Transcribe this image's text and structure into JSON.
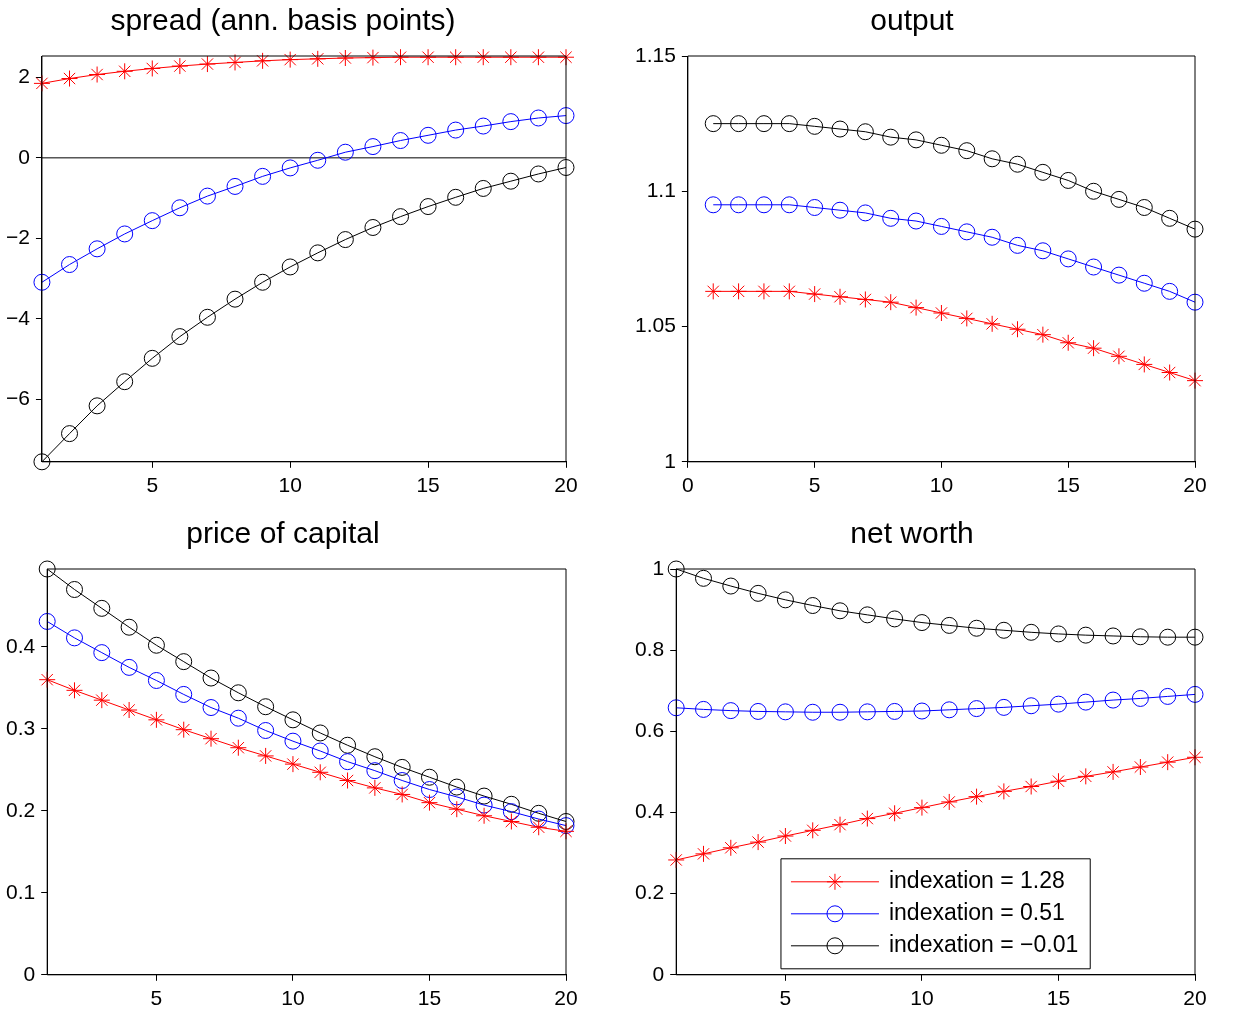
{
  "chart_data": [
    {
      "type": "line",
      "title": "spread (ann. basis points)",
      "x": [
        1,
        2,
        3,
        4,
        5,
        6,
        7,
        8,
        9,
        10,
        11,
        12,
        13,
        14,
        15,
        16,
        17,
        18,
        19,
        20
      ],
      "xlim": [
        1,
        20
      ],
      "xticks": [
        5,
        10,
        15,
        20
      ],
      "ylim": [
        -7.55,
        2.53
      ],
      "yticks": [
        {
          "value": -6,
          "label": "−6"
        },
        {
          "value": -4,
          "label": "−4"
        },
        {
          "value": -2,
          "label": "−2"
        },
        0,
        2
      ],
      "grid": false,
      "legend": false,
      "ref_lines": [
        {
          "axis": "y",
          "value": 0,
          "color": "#000000",
          "line_style": "solid"
        }
      ],
      "series": [
        {
          "color": "#ff0000",
          "marker": "cross",
          "values": [
            1.85,
            1.97,
            2.07,
            2.15,
            2.22,
            2.28,
            2.33,
            2.37,
            2.41,
            2.44,
            2.46,
            2.48,
            2.49,
            2.5,
            2.5,
            2.5,
            2.5,
            2.5,
            2.5,
            2.5
          ]
        },
        {
          "color": "#0000ff",
          "marker": "circle",
          "values": [
            -3.09,
            -2.65,
            -2.26,
            -1.89,
            -1.56,
            -1.24,
            -0.95,
            -0.71,
            -0.46,
            -0.25,
            -0.06,
            0.14,
            0.28,
            0.43,
            0.56,
            0.69,
            0.79,
            0.9,
            0.99,
            1.05
          ]
        },
        {
          "color": "#000000",
          "marker": "circle",
          "values": [
            -7.55,
            -6.85,
            -6.16,
            -5.56,
            -4.98,
            -4.44,
            -3.96,
            -3.51,
            -3.09,
            -2.71,
            -2.36,
            -2.03,
            -1.73,
            -1.46,
            -1.21,
            -0.98,
            -0.76,
            -0.58,
            -0.4,
            -0.24
          ]
        }
      ]
    },
    {
      "type": "line",
      "title": "output",
      "x": [
        1,
        2,
        3,
        4,
        5,
        6,
        7,
        8,
        9,
        10,
        11,
        12,
        13,
        14,
        15,
        16,
        17,
        18,
        19,
        20
      ],
      "xlim": [
        0,
        20
      ],
      "xticks": [
        0,
        5,
        10,
        15,
        20
      ],
      "ylim": [
        1,
        1.15
      ],
      "yticks": [
        1,
        1.05,
        1.1,
        1.15
      ],
      "grid": false,
      "legend": false,
      "series": [
        {
          "color": "#ff0000",
          "marker": "cross",
          "values": [
            1.063,
            1.063,
            1.063,
            1.063,
            1.062,
            1.061,
            1.06,
            1.059,
            1.057,
            1.055,
            1.053,
            1.051,
            1.049,
            1.047,
            1.044,
            1.042,
            1.039,
            1.036,
            1.033,
            1.03
          ]
        },
        {
          "color": "#0000ff",
          "marker": "circle",
          "values": [
            1.095,
            1.095,
            1.095,
            1.095,
            1.094,
            1.093,
            1.092,
            1.09,
            1.089,
            1.087,
            1.085,
            1.083,
            1.08,
            1.078,
            1.075,
            1.072,
            1.069,
            1.066,
            1.063,
            1.059
          ]
        },
        {
          "color": "#000000",
          "marker": "circle",
          "values": [
            1.125,
            1.125,
            1.125,
            1.125,
            1.124,
            1.123,
            1.122,
            1.12,
            1.119,
            1.117,
            1.115,
            1.112,
            1.11,
            1.107,
            1.104,
            1.1,
            1.097,
            1.094,
            1.09,
            1.086
          ]
        }
      ]
    },
    {
      "type": "line",
      "title": "price of capital",
      "x": [
        1,
        2,
        3,
        4,
        5,
        6,
        7,
        8,
        9,
        10,
        11,
        12,
        13,
        14,
        15,
        16,
        17,
        18,
        19,
        20
      ],
      "xlim": [
        1,
        20
      ],
      "xticks": [
        5,
        10,
        15,
        20
      ],
      "ylim": [
        0,
        0.495
      ],
      "yticks": [
        0,
        0.1,
        0.2,
        0.3,
        0.4
      ],
      "grid": false,
      "legend": false,
      "series": [
        {
          "color": "#ff0000",
          "marker": "cross",
          "values": [
            0.36,
            0.347,
            0.335,
            0.323,
            0.311,
            0.299,
            0.288,
            0.277,
            0.267,
            0.257,
            0.247,
            0.237,
            0.228,
            0.22,
            0.21,
            0.202,
            0.194,
            0.187,
            0.18,
            0.175
          ]
        },
        {
          "color": "#0000ff",
          "marker": "circle",
          "values": [
            0.431,
            0.411,
            0.393,
            0.375,
            0.359,
            0.342,
            0.326,
            0.313,
            0.298,
            0.285,
            0.273,
            0.26,
            0.249,
            0.237,
            0.226,
            0.217,
            0.207,
            0.199,
            0.19,
            0.182
          ]
        },
        {
          "color": "#000000",
          "marker": "circle",
          "values": [
            0.495,
            0.47,
            0.447,
            0.424,
            0.402,
            0.382,
            0.362,
            0.344,
            0.327,
            0.311,
            0.295,
            0.28,
            0.266,
            0.253,
            0.241,
            0.229,
            0.218,
            0.208,
            0.197,
            0.187
          ]
        }
      ]
    },
    {
      "type": "line",
      "title": "net worth",
      "x": [
        1,
        2,
        3,
        4,
        5,
        6,
        7,
        8,
        9,
        10,
        11,
        12,
        13,
        14,
        15,
        16,
        17,
        18,
        19,
        20
      ],
      "xlim": [
        1,
        20
      ],
      "xticks": [
        5,
        10,
        15,
        20
      ],
      "ylim": [
        0,
        1
      ],
      "yticks": [
        0,
        0.2,
        0.4,
        0.6,
        0.8,
        1
      ],
      "grid": false,
      "legend": "bottom",
      "series": [
        {
          "name": "indexation = 1.28",
          "color": "#ff0000",
          "marker": "cross",
          "values": [
            0.283,
            0.298,
            0.313,
            0.327,
            0.342,
            0.356,
            0.37,
            0.385,
            0.398,
            0.412,
            0.426,
            0.439,
            0.452,
            0.464,
            0.477,
            0.489,
            0.5,
            0.512,
            0.524,
            0.536
          ]
        },
        {
          "name": "indexation = 0.51",
          "color": "#0000ff",
          "marker": "circle",
          "values": [
            0.658,
            0.654,
            0.651,
            0.649,
            0.648,
            0.647,
            0.647,
            0.648,
            0.649,
            0.65,
            0.653,
            0.656,
            0.659,
            0.663,
            0.667,
            0.672,
            0.677,
            0.681,
            0.686,
            0.691
          ]
        },
        {
          "name": "indexation = −0.01",
          "color": "#000000",
          "marker": "circle",
          "values": [
            1,
            0.977,
            0.958,
            0.94,
            0.924,
            0.91,
            0.897,
            0.887,
            0.877,
            0.868,
            0.861,
            0.854,
            0.849,
            0.844,
            0.84,
            0.837,
            0.835,
            0.833,
            0.832,
            0.832
          ]
        }
      ]
    }
  ]
}
